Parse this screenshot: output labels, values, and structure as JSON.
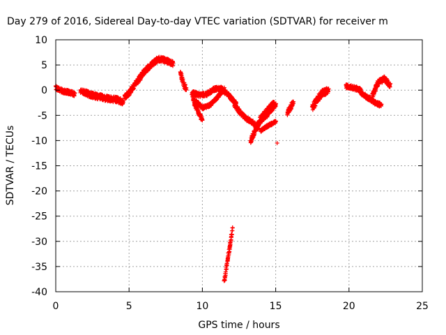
{
  "chart_data": {
    "type": "scatter",
    "title": "Day 279 of 2016, Sidereal Day-to-day VTEC variation (SDTVAR) for receiver m",
    "xlabel": "GPS time / hours",
    "ylabel": "SDTVAR / TECUs",
    "xlim": [
      0,
      25
    ],
    "ylim": [
      -40,
      10
    ],
    "xticks": [
      "0",
      "5",
      "10",
      "15",
      "20",
      "25"
    ],
    "yticks": [
      "10",
      "5",
      "0",
      "-5",
      "-10",
      "-15",
      "-20",
      "-25",
      "-30",
      "-35",
      "-40"
    ],
    "grid": true,
    "marker": "+",
    "color": "#ff0000",
    "segments": [
      {
        "x": [
          0.0,
          0.5,
          1.0,
          1.3
        ],
        "y": [
          0.5,
          -0.2,
          -0.5,
          -0.8
        ],
        "spread": 0.8
      },
      {
        "x": [
          1.7,
          2.3,
          3.0,
          3.6,
          4.2,
          4.6
        ],
        "y": [
          0.0,
          -0.9,
          -1.3,
          -1.7,
          -1.9,
          -2.4
        ],
        "spread": 1.1
      },
      {
        "x": [
          4.7,
          5.0,
          5.5,
          6.0,
          6.5,
          7.0,
          7.5,
          8.0
        ],
        "y": [
          -1.5,
          -0.5,
          1.5,
          3.5,
          5.0,
          6.2,
          5.9,
          5.2
        ],
        "spread": 1.0
      },
      {
        "x": [
          8.5,
          8.7,
          8.9
        ],
        "y": [
          3.5,
          1.5,
          0.0
        ],
        "spread": 1.0
      },
      {
        "x": [
          9.3,
          9.5,
          9.8,
          10.0
        ],
        "y": [
          -1.0,
          -3.0,
          -4.8,
          -6.0
        ],
        "spread": 0.8
      },
      {
        "x": [
          9.3,
          9.8,
          10.3,
          10.8,
          11.3,
          11.8,
          12.3
        ],
        "y": [
          -0.5,
          -1.0,
          -0.8,
          0.2,
          0.3,
          -1.0,
          -2.7
        ],
        "spread": 0.8
      },
      {
        "x": [
          9.5,
          10.0,
          10.5,
          11.0,
          11.5
        ],
        "y": [
          -2.0,
          -3.5,
          -3.0,
          -1.5,
          0.2
        ],
        "spread": 0.6
      },
      {
        "x": [
          12.2,
          12.6,
          13.0,
          13.5,
          13.8
        ],
        "y": [
          -3.0,
          -4.5,
          -5.7,
          -6.5,
          -7.5
        ],
        "spread": 0.8
      },
      {
        "x": [
          13.3,
          13.6,
          13.9,
          14.2,
          14.6,
          14.9
        ],
        "y": [
          -10.0,
          -8.0,
          -6.0,
          -4.8,
          -3.5,
          -2.5
        ],
        "spread": 1.0
      },
      {
        "x": [
          13.7,
          14.0,
          14.4,
          14.8,
          15.0
        ],
        "y": [
          -7.5,
          -6.0,
          -5.0,
          -3.5,
          -3.0
        ],
        "spread": 0.7
      },
      {
        "x": [
          14.0,
          14.5,
          15.0
        ],
        "y": [
          -8.0,
          -7.0,
          -6.3
        ],
        "spread": 0.5
      },
      {
        "x": [
          15.8,
          16.0,
          16.2
        ],
        "y": [
          -4.5,
          -3.5,
          -2.5
        ],
        "spread": 1.0
      },
      {
        "x": [
          17.5,
          17.8,
          18.2,
          18.6
        ],
        "y": [
          -3.5,
          -2.0,
          -0.5,
          0.0
        ],
        "spread": 1.3
      },
      {
        "x": [
          19.8,
          20.3,
          20.8
        ],
        "y": [
          0.8,
          0.5,
          0.0
        ],
        "spread": 0.8
      },
      {
        "x": [
          20.8,
          21.3,
          21.8,
          22.2
        ],
        "y": [
          -0.5,
          -1.5,
          -2.5,
          -3.0
        ],
        "spread": 0.8
      },
      {
        "x": [
          21.6,
          22.0,
          22.4,
          22.8
        ],
        "y": [
          -1.0,
          1.5,
          2.3,
          1.0
        ],
        "spread": 1.0
      },
      {
        "x": [
          11.5,
          11.7,
          11.9,
          12.05
        ],
        "y": [
          -38.0,
          -34.0,
          -30.5,
          -27.5
        ],
        "spread": 0.6
      }
    ],
    "points": [
      {
        "x": 15.1,
        "y": -10.5
      }
    ]
  }
}
